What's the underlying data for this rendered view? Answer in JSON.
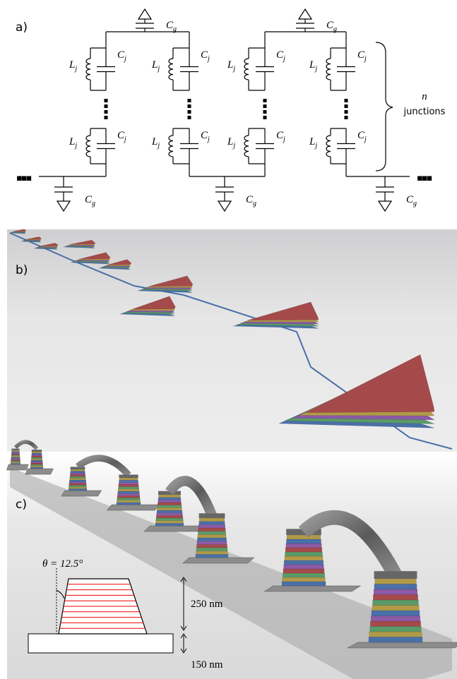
{
  "panels": {
    "a": "a)",
    "b": "b)",
    "c": "c)"
  },
  "circuit": {
    "ground_capacitor": {
      "symbol": "C",
      "subscript": "g"
    },
    "junction_capacitor": {
      "symbol": "C",
      "subscript": "j"
    },
    "junction_inductor": {
      "symbol": "L",
      "subscript": "j"
    },
    "ellipsis": "▪▪▪",
    "junction_count": {
      "symbol": "n",
      "text": "junctions"
    }
  },
  "inset": {
    "angle": "θ = 12.5°",
    "junction_height": "250 nm",
    "base_height": "150 nm"
  }
}
